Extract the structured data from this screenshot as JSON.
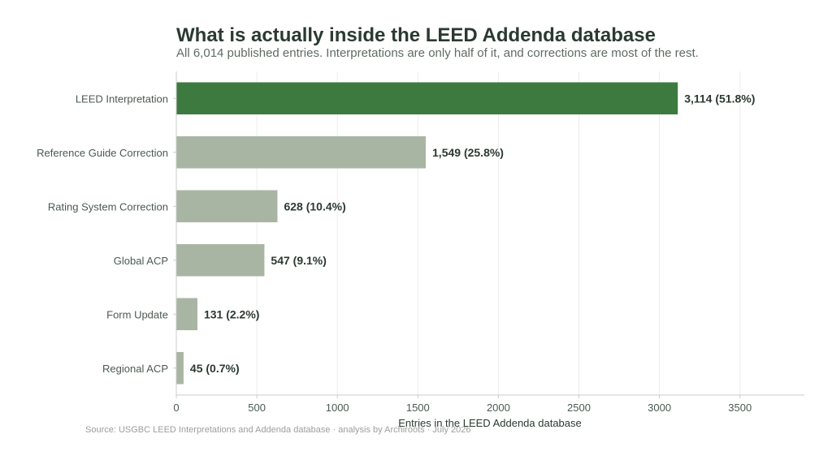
{
  "title": "What is actually inside the LEED Addenda database",
  "subtitle": "All 6,014 published entries. Interpretations are only half of it, and corrections are most of the rest.",
  "source": "Source: USGBC LEED Interpretations and Addenda database · analysis by Archiroots · July 2026",
  "colors": {
    "highlight": "#3d7a40",
    "muted": "#a9b5a3",
    "text": "#2b3a31",
    "axis": "#c8ccc9",
    "grid": "#ececec"
  },
  "chart_data": {
    "type": "bar",
    "orientation": "horizontal",
    "categories": [
      "LEED Interpretation",
      "Reference Guide Correction",
      "Rating System Correction",
      "Global ACP",
      "Form Update",
      "Regional ACP"
    ],
    "values": [
      3114,
      1549,
      628,
      547,
      131,
      45
    ],
    "value_labels": [
      "3,114  (51.8%)",
      "1,549  (25.8%)",
      "628  (10.4%)",
      "547  (9.1%)",
      "131  (2.2%)",
      "45  (0.7%)"
    ],
    "highlight_index": 0,
    "xlabel": "Entries in the LEED Addenda database",
    "ylabel": "",
    "xlim": [
      0,
      3900
    ],
    "xticks": [
      0,
      500,
      1000,
      1500,
      2000,
      2500,
      3000,
      3500
    ],
    "grid": "vertical"
  }
}
